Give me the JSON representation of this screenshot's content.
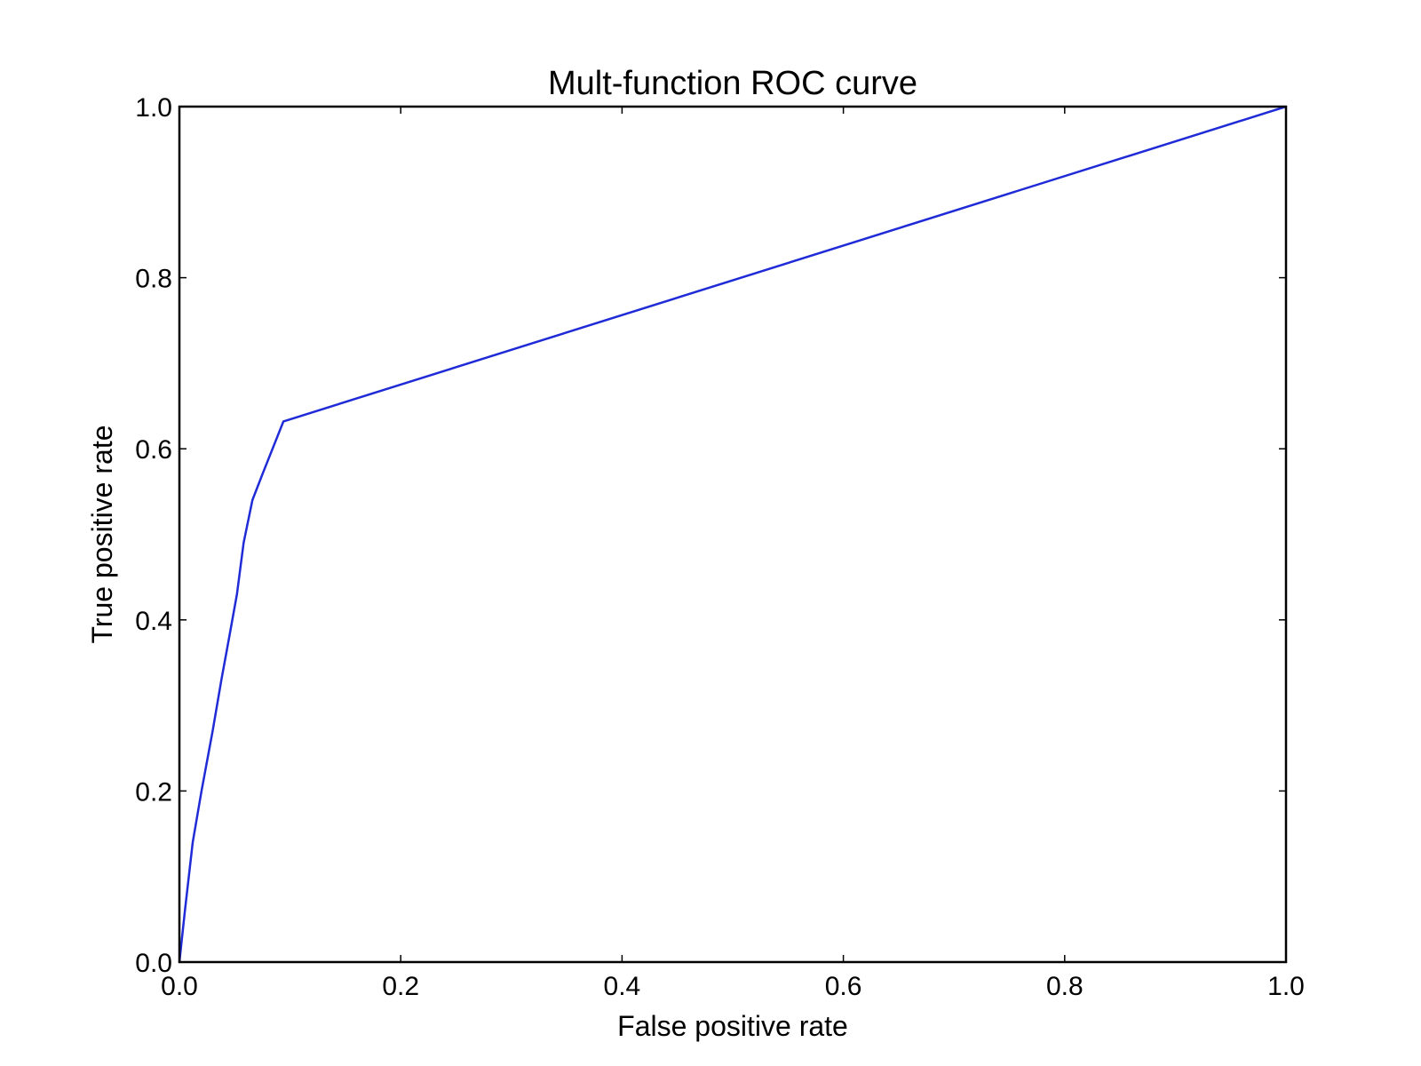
{
  "chart_data": {
    "type": "line",
    "title": "Mult-function ROC curve",
    "xlabel": "False positive rate",
    "ylabel": "True positive rate",
    "xlim": [
      0.0,
      1.0
    ],
    "ylim": [
      0.0,
      1.0
    ],
    "xticks": [
      "0.0",
      "0.2",
      "0.4",
      "0.6",
      "0.8",
      "1.0"
    ],
    "yticks": [
      "0.0",
      "0.2",
      "0.4",
      "0.6",
      "0.8",
      "1.0"
    ],
    "grid": false,
    "legend": "none",
    "series": [
      {
        "color": "#1f2bd6",
        "x": [
          0.0,
          0.005,
          0.012,
          0.02,
          0.03,
          0.038,
          0.045,
          0.052,
          0.058,
          0.066,
          0.075,
          0.094,
          1.0
        ],
        "y": [
          0.0,
          0.06,
          0.14,
          0.2,
          0.27,
          0.33,
          0.38,
          0.43,
          0.49,
          0.54,
          0.57,
          0.632,
          1.0
        ]
      }
    ]
  }
}
